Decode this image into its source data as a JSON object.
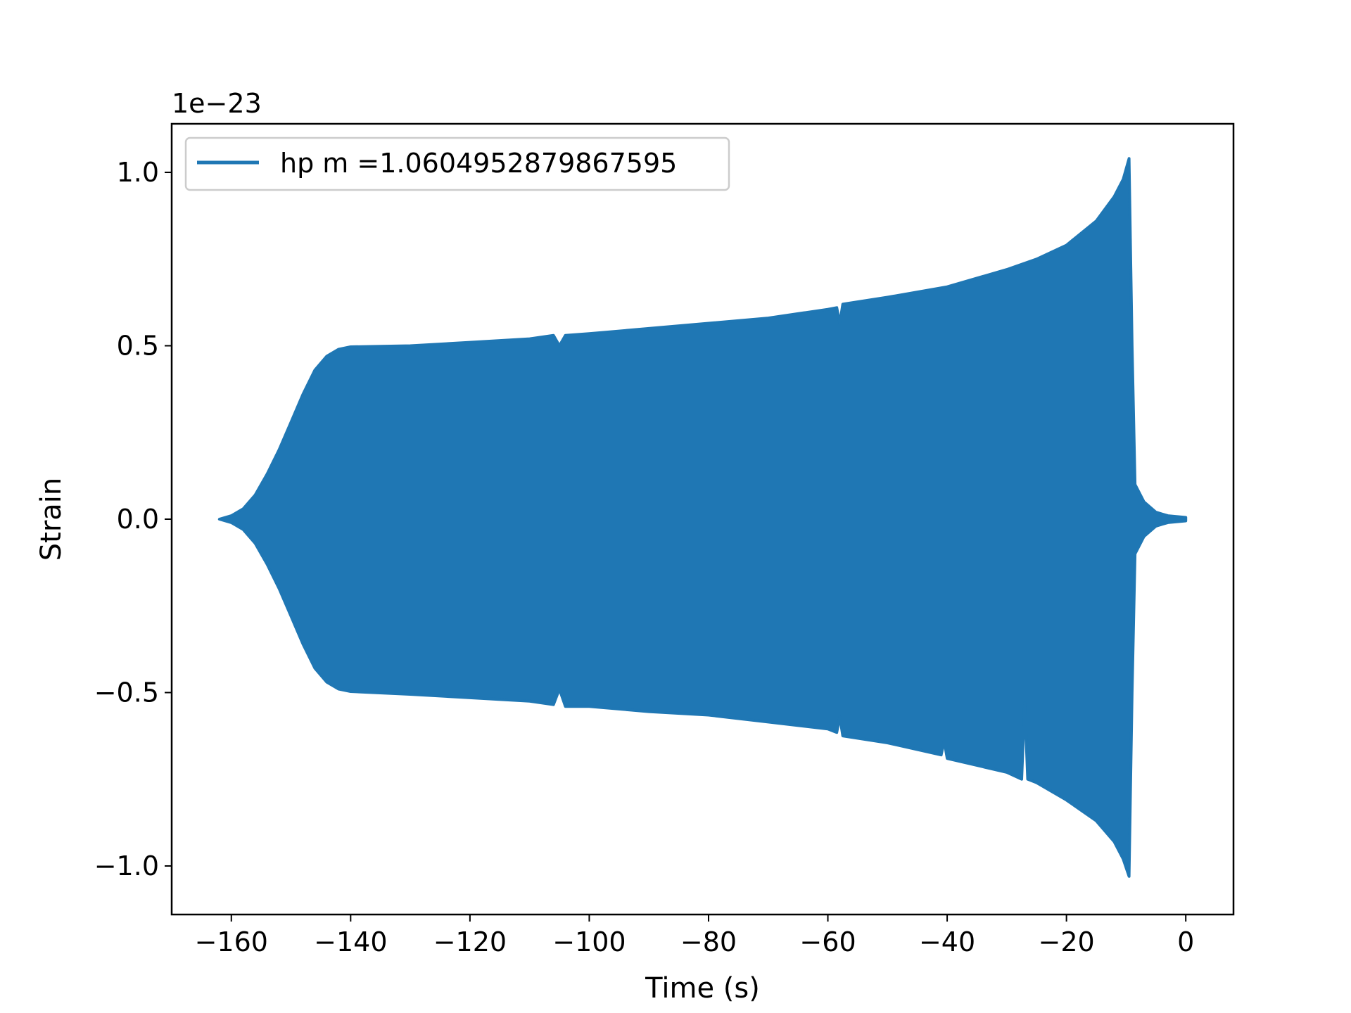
{
  "chart_data": {
    "type": "line",
    "xlabel": "Time (s)",
    "ylabel": "Strain",
    "y_offset_label": "1e−23",
    "xlim": [
      -170,
      8
    ],
    "ylim": [
      -1.14,
      1.14
    ],
    "grid": false,
    "legend_position": "top-left",
    "x_ticks": [
      {
        "value": -160,
        "label": "−160"
      },
      {
        "value": -140,
        "label": "−140"
      },
      {
        "value": -120,
        "label": "−120"
      },
      {
        "value": -100,
        "label": "−100"
      },
      {
        "value": -80,
        "label": "−80"
      },
      {
        "value": -60,
        "label": "−60"
      },
      {
        "value": -40,
        "label": "−40"
      },
      {
        "value": -20,
        "label": "−20"
      },
      {
        "value": 0,
        "label": "0"
      }
    ],
    "y_ticks": [
      {
        "value": 1.0,
        "label": "1.0"
      },
      {
        "value": 0.5,
        "label": "0.5"
      },
      {
        "value": 0.0,
        "label": "0.0"
      },
      {
        "value": -0.5,
        "label": "−0.5"
      },
      {
        "value": -1.0,
        "label": "−1.0"
      }
    ],
    "series": [
      {
        "name": "hp m =1.0604952879867595",
        "color": "#1f77b4",
        "upper_envelope": [
          [
            -162,
            0.0
          ],
          [
            -160,
            0.01
          ],
          [
            -158,
            0.03
          ],
          [
            -156,
            0.07
          ],
          [
            -154,
            0.13
          ],
          [
            -152,
            0.2
          ],
          [
            -150,
            0.28
          ],
          [
            -148,
            0.36
          ],
          [
            -146,
            0.43
          ],
          [
            -144,
            0.47
          ],
          [
            -142,
            0.49
          ],
          [
            -140,
            0.497
          ],
          [
            -130,
            0.5
          ],
          [
            -120,
            0.51
          ],
          [
            -110,
            0.52
          ],
          [
            -106,
            0.53
          ],
          [
            -105,
            0.5
          ],
          [
            -104,
            0.53
          ],
          [
            -100,
            0.535
          ],
          [
            -90,
            0.55
          ],
          [
            -80,
            0.565
          ],
          [
            -70,
            0.58
          ],
          [
            -60,
            0.605
          ],
          [
            -58.5,
            0.61
          ],
          [
            -58,
            0.565
          ],
          [
            -57.5,
            0.62
          ],
          [
            -50,
            0.64
          ],
          [
            -40,
            0.67
          ],
          [
            -30,
            0.72
          ],
          [
            -25,
            0.75
          ],
          [
            -20,
            0.79
          ],
          [
            -15,
            0.86
          ],
          [
            -12,
            0.93
          ],
          [
            -10.5,
            0.98
          ],
          [
            -9.5,
            1.04
          ],
          [
            -9,
            0.5
          ],
          [
            -8.5,
            0.1
          ],
          [
            -7,
            0.05
          ],
          [
            -5,
            0.02
          ],
          [
            -3,
            0.01
          ],
          [
            0,
            0.005
          ]
        ],
        "lower_envelope": [
          [
            -162,
            0.0
          ],
          [
            -160,
            -0.01
          ],
          [
            -158,
            -0.03
          ],
          [
            -156,
            -0.07
          ],
          [
            -154,
            -0.13
          ],
          [
            -152,
            -0.2
          ],
          [
            -150,
            -0.28
          ],
          [
            -148,
            -0.36
          ],
          [
            -146,
            -0.43
          ],
          [
            -144,
            -0.47
          ],
          [
            -142,
            -0.49
          ],
          [
            -140,
            -0.497
          ],
          [
            -130,
            -0.505
          ],
          [
            -120,
            -0.515
          ],
          [
            -110,
            -0.525
          ],
          [
            -106,
            -0.535
          ],
          [
            -105,
            -0.49
          ],
          [
            -104,
            -0.54
          ],
          [
            -100,
            -0.54
          ],
          [
            -90,
            -0.555
          ],
          [
            -80,
            -0.565
          ],
          [
            -70,
            -0.585
          ],
          [
            -60,
            -0.605
          ],
          [
            -58.5,
            -0.615
          ],
          [
            -58,
            -0.57
          ],
          [
            -57.5,
            -0.625
          ],
          [
            -50,
            -0.645
          ],
          [
            -41,
            -0.68
          ],
          [
            -40.5,
            -0.64
          ],
          [
            -40,
            -0.69
          ],
          [
            -30,
            -0.73
          ],
          [
            -27.5,
            -0.75
          ],
          [
            -27,
            -0.53
          ],
          [
            -26.5,
            -0.75
          ],
          [
            -25,
            -0.76
          ],
          [
            -20,
            -0.81
          ],
          [
            -15,
            -0.87
          ],
          [
            -12,
            -0.93
          ],
          [
            -10.5,
            -0.98
          ],
          [
            -9.5,
            -1.03
          ],
          [
            -9,
            -0.5
          ],
          [
            -8.5,
            -0.1
          ],
          [
            -7,
            -0.05
          ],
          [
            -5,
            -0.02
          ],
          [
            -3,
            -0.01
          ],
          [
            0,
            -0.005
          ]
        ]
      }
    ]
  }
}
